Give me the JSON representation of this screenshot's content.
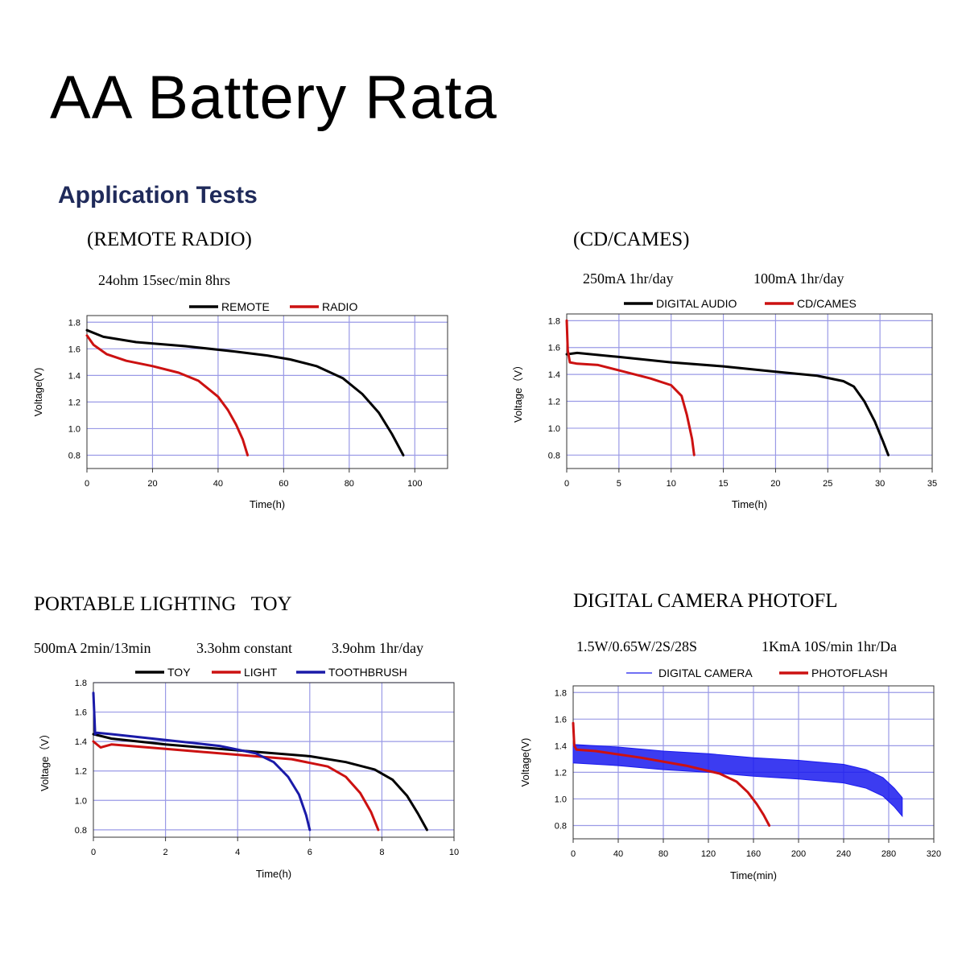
{
  "page": {
    "title": "AA Battery Rata",
    "subtitle": "Application Tests"
  },
  "panels": [
    {
      "heading": "(REMOTE RADIO)",
      "notes": [
        "24ohm 15sec/min 8hrs"
      ]
    },
    {
      "heading": "(CD/CAMES)",
      "notes": [
        "250mA 1hr/day",
        "100mA 1hr/day"
      ]
    },
    {
      "heading": "PORTABLE LIGHTING   TOY",
      "notes": [
        "500mA 2min/13min",
        "3.3ohm constant",
        "3.9ohm 1hr/day"
      ]
    },
    {
      "heading": "DIGITAL CAMERA PHOTOFL",
      "notes": [
        "1.5W/0.65W/2S/28S",
        "1KmA 10S/min 1hr/Da"
      ]
    }
  ],
  "chart_data": [
    {
      "type": "line",
      "xlabel": "Time(h)",
      "ylabel": "Voltage(V)",
      "xlim": [
        0,
        110
      ],
      "ylim": [
        0.7,
        1.85
      ],
      "xticks": [
        0,
        20,
        40,
        60,
        80,
        100
      ],
      "yticks": [
        0.8,
        1.0,
        1.2,
        1.4,
        1.6,
        1.8
      ],
      "grid": true,
      "legend": "top",
      "series": [
        {
          "name": "REMOTE",
          "color": "#000000",
          "x": [
            0,
            5,
            15,
            30,
            45,
            55,
            62,
            70,
            78,
            84,
            89,
            93,
            96.5
          ],
          "y": [
            1.74,
            1.69,
            1.65,
            1.62,
            1.58,
            1.55,
            1.52,
            1.47,
            1.38,
            1.26,
            1.12,
            0.96,
            0.8
          ]
        },
        {
          "name": "RADIO",
          "color": "#cc1111",
          "x": [
            0,
            2,
            6,
            12,
            20,
            28,
            34,
            40,
            43,
            45.5,
            47.5,
            49
          ],
          "y": [
            1.7,
            1.63,
            1.56,
            1.51,
            1.47,
            1.42,
            1.36,
            1.24,
            1.14,
            1.03,
            0.92,
            0.8
          ]
        }
      ]
    },
    {
      "type": "line",
      "xlabel": "Time(h)",
      "ylabel": "Voltage（V）",
      "xlim": [
        0,
        35
      ],
      "ylim": [
        0.7,
        1.85
      ],
      "xticks": [
        0,
        5,
        10,
        15,
        20,
        25,
        30,
        35
      ],
      "yticks": [
        0.8,
        1.0,
        1.2,
        1.4,
        1.6,
        1.8
      ],
      "grid": true,
      "legend": "top",
      "series": [
        {
          "name": "DIGITAL AUDIO",
          "color": "#000000",
          "x": [
            0,
            1,
            5,
            10,
            15,
            20,
            24,
            26.5,
            27.5,
            28.5,
            29.5,
            30.3,
            30.8
          ],
          "y": [
            1.55,
            1.56,
            1.53,
            1.49,
            1.46,
            1.42,
            1.39,
            1.35,
            1.31,
            1.2,
            1.05,
            0.9,
            0.8
          ]
        },
        {
          "name": "CD/CAMES",
          "color": "#cc1111",
          "x": [
            0,
            0.1,
            0.3,
            1,
            3,
            5,
            8,
            10,
            11,
            11.5,
            12,
            12.2
          ],
          "y": [
            1.8,
            1.58,
            1.49,
            1.48,
            1.47,
            1.43,
            1.37,
            1.32,
            1.24,
            1.1,
            0.92,
            0.8
          ]
        }
      ]
    },
    {
      "type": "line",
      "xlabel": "Time(h)",
      "ylabel": "Voltage（V）",
      "xlim": [
        0,
        10
      ],
      "ylim": [
        0.75,
        1.8
      ],
      "xticks": [
        0,
        2,
        4,
        6,
        8,
        10
      ],
      "yticks": [
        0.8,
        1.0,
        1.2,
        1.4,
        1.6,
        1.8
      ],
      "grid": true,
      "legend": "top",
      "series": [
        {
          "name": "TOY",
          "color": "#000000",
          "x": [
            0,
            0.5,
            2,
            4,
            6,
            7,
            7.8,
            8.3,
            8.7,
            9.0,
            9.25
          ],
          "y": [
            1.45,
            1.42,
            1.38,
            1.34,
            1.3,
            1.26,
            1.21,
            1.14,
            1.03,
            0.91,
            0.8
          ]
        },
        {
          "name": "LIGHT",
          "color": "#cc1111",
          "x": [
            0,
            0.2,
            0.5,
            2,
            4,
            5.5,
            6.5,
            7.0,
            7.4,
            7.7,
            7.9
          ],
          "y": [
            1.4,
            1.36,
            1.38,
            1.35,
            1.31,
            1.28,
            1.23,
            1.16,
            1.05,
            0.92,
            0.8
          ]
        },
        {
          "name": "TOOTHBRUSH",
          "color": "#1a1aa8",
          "x": [
            0,
            0.05,
            0.1,
            0.5,
            2,
            3.5,
            4.5,
            5.0,
            5.4,
            5.7,
            5.9,
            6.0
          ],
          "y": [
            1.73,
            1.45,
            1.46,
            1.45,
            1.41,
            1.37,
            1.32,
            1.26,
            1.16,
            1.04,
            0.9,
            0.8
          ]
        }
      ]
    },
    {
      "type": "line",
      "xlabel": "Time(min)",
      "ylabel": "Voltage(V)",
      "xlim": [
        0,
        320
      ],
      "ylim": [
        0.7,
        1.85
      ],
      "xticks": [
        0,
        40,
        80,
        120,
        160,
        200,
        240,
        280,
        320
      ],
      "yticks": [
        0.8,
        1.0,
        1.2,
        1.4,
        1.6,
        1.8
      ],
      "grid": true,
      "legend": "top",
      "series": [
        {
          "name": "DIGITAL CAMERA",
          "color": "#1a1aee",
          "x": [
            0,
            40,
            80,
            120,
            160,
            200,
            240,
            260,
            275,
            285,
            292
          ],
          "y": [
            1.34,
            1.32,
            1.29,
            1.27,
            1.24,
            1.22,
            1.19,
            1.15,
            1.09,
            1.01,
            0.94
          ],
          "band": 0.07
        },
        {
          "name": "PHOTOFLASH",
          "color": "#cc1111",
          "x": [
            0,
            1,
            3,
            20,
            60,
            100,
            130,
            145,
            155,
            163,
            169,
            174
          ],
          "y": [
            1.57,
            1.4,
            1.37,
            1.36,
            1.31,
            1.25,
            1.19,
            1.13,
            1.05,
            0.96,
            0.88,
            0.8
          ]
        }
      ]
    }
  ]
}
